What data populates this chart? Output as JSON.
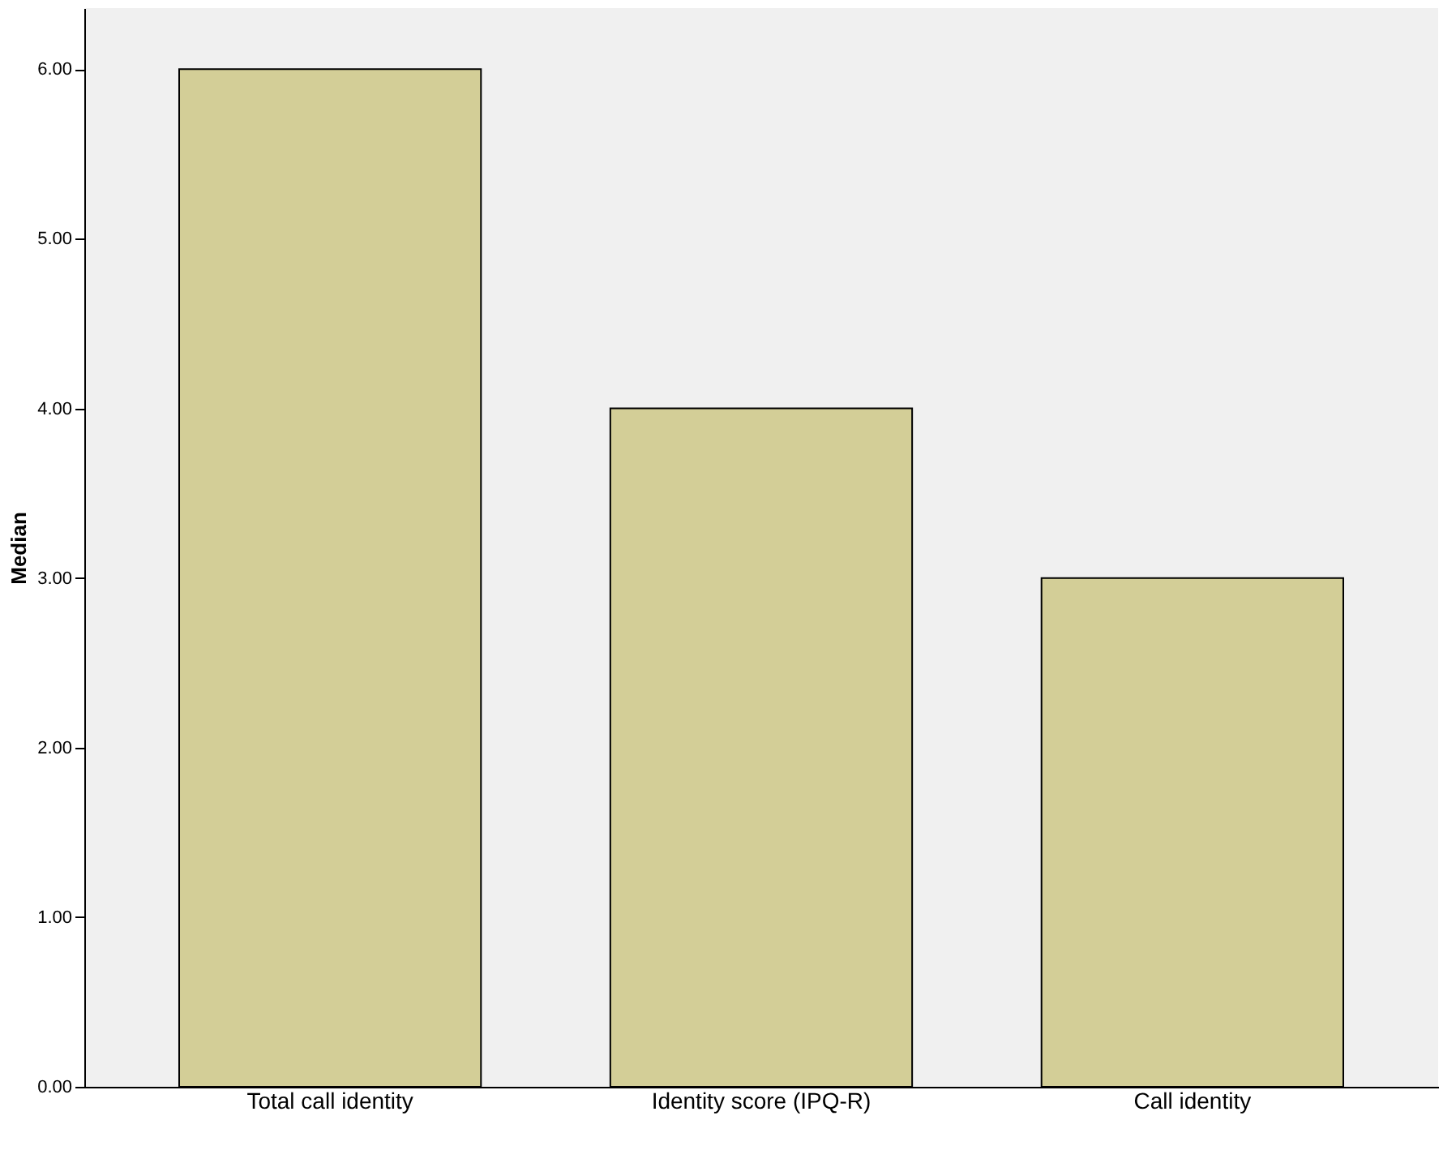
{
  "chart_data": {
    "type": "bar",
    "ylabel": "Median",
    "categories": [
      "Total call identity",
      "Identity score (IPQ-R)",
      "Call identity"
    ],
    "values": [
      6,
      4,
      3
    ],
    "color": "#d3ce97",
    "ylim": [
      0,
      6.36
    ],
    "yticks": [
      {
        "value": 0,
        "label": "0.00"
      },
      {
        "value": 1,
        "label": "1.00"
      },
      {
        "value": 2,
        "label": "2.00"
      },
      {
        "value": 3,
        "label": "3.00"
      },
      {
        "value": 4,
        "label": "4.00"
      },
      {
        "value": 5,
        "label": "5.00"
      },
      {
        "value": 6,
        "label": "6.00"
      }
    ],
    "grid": false
  }
}
